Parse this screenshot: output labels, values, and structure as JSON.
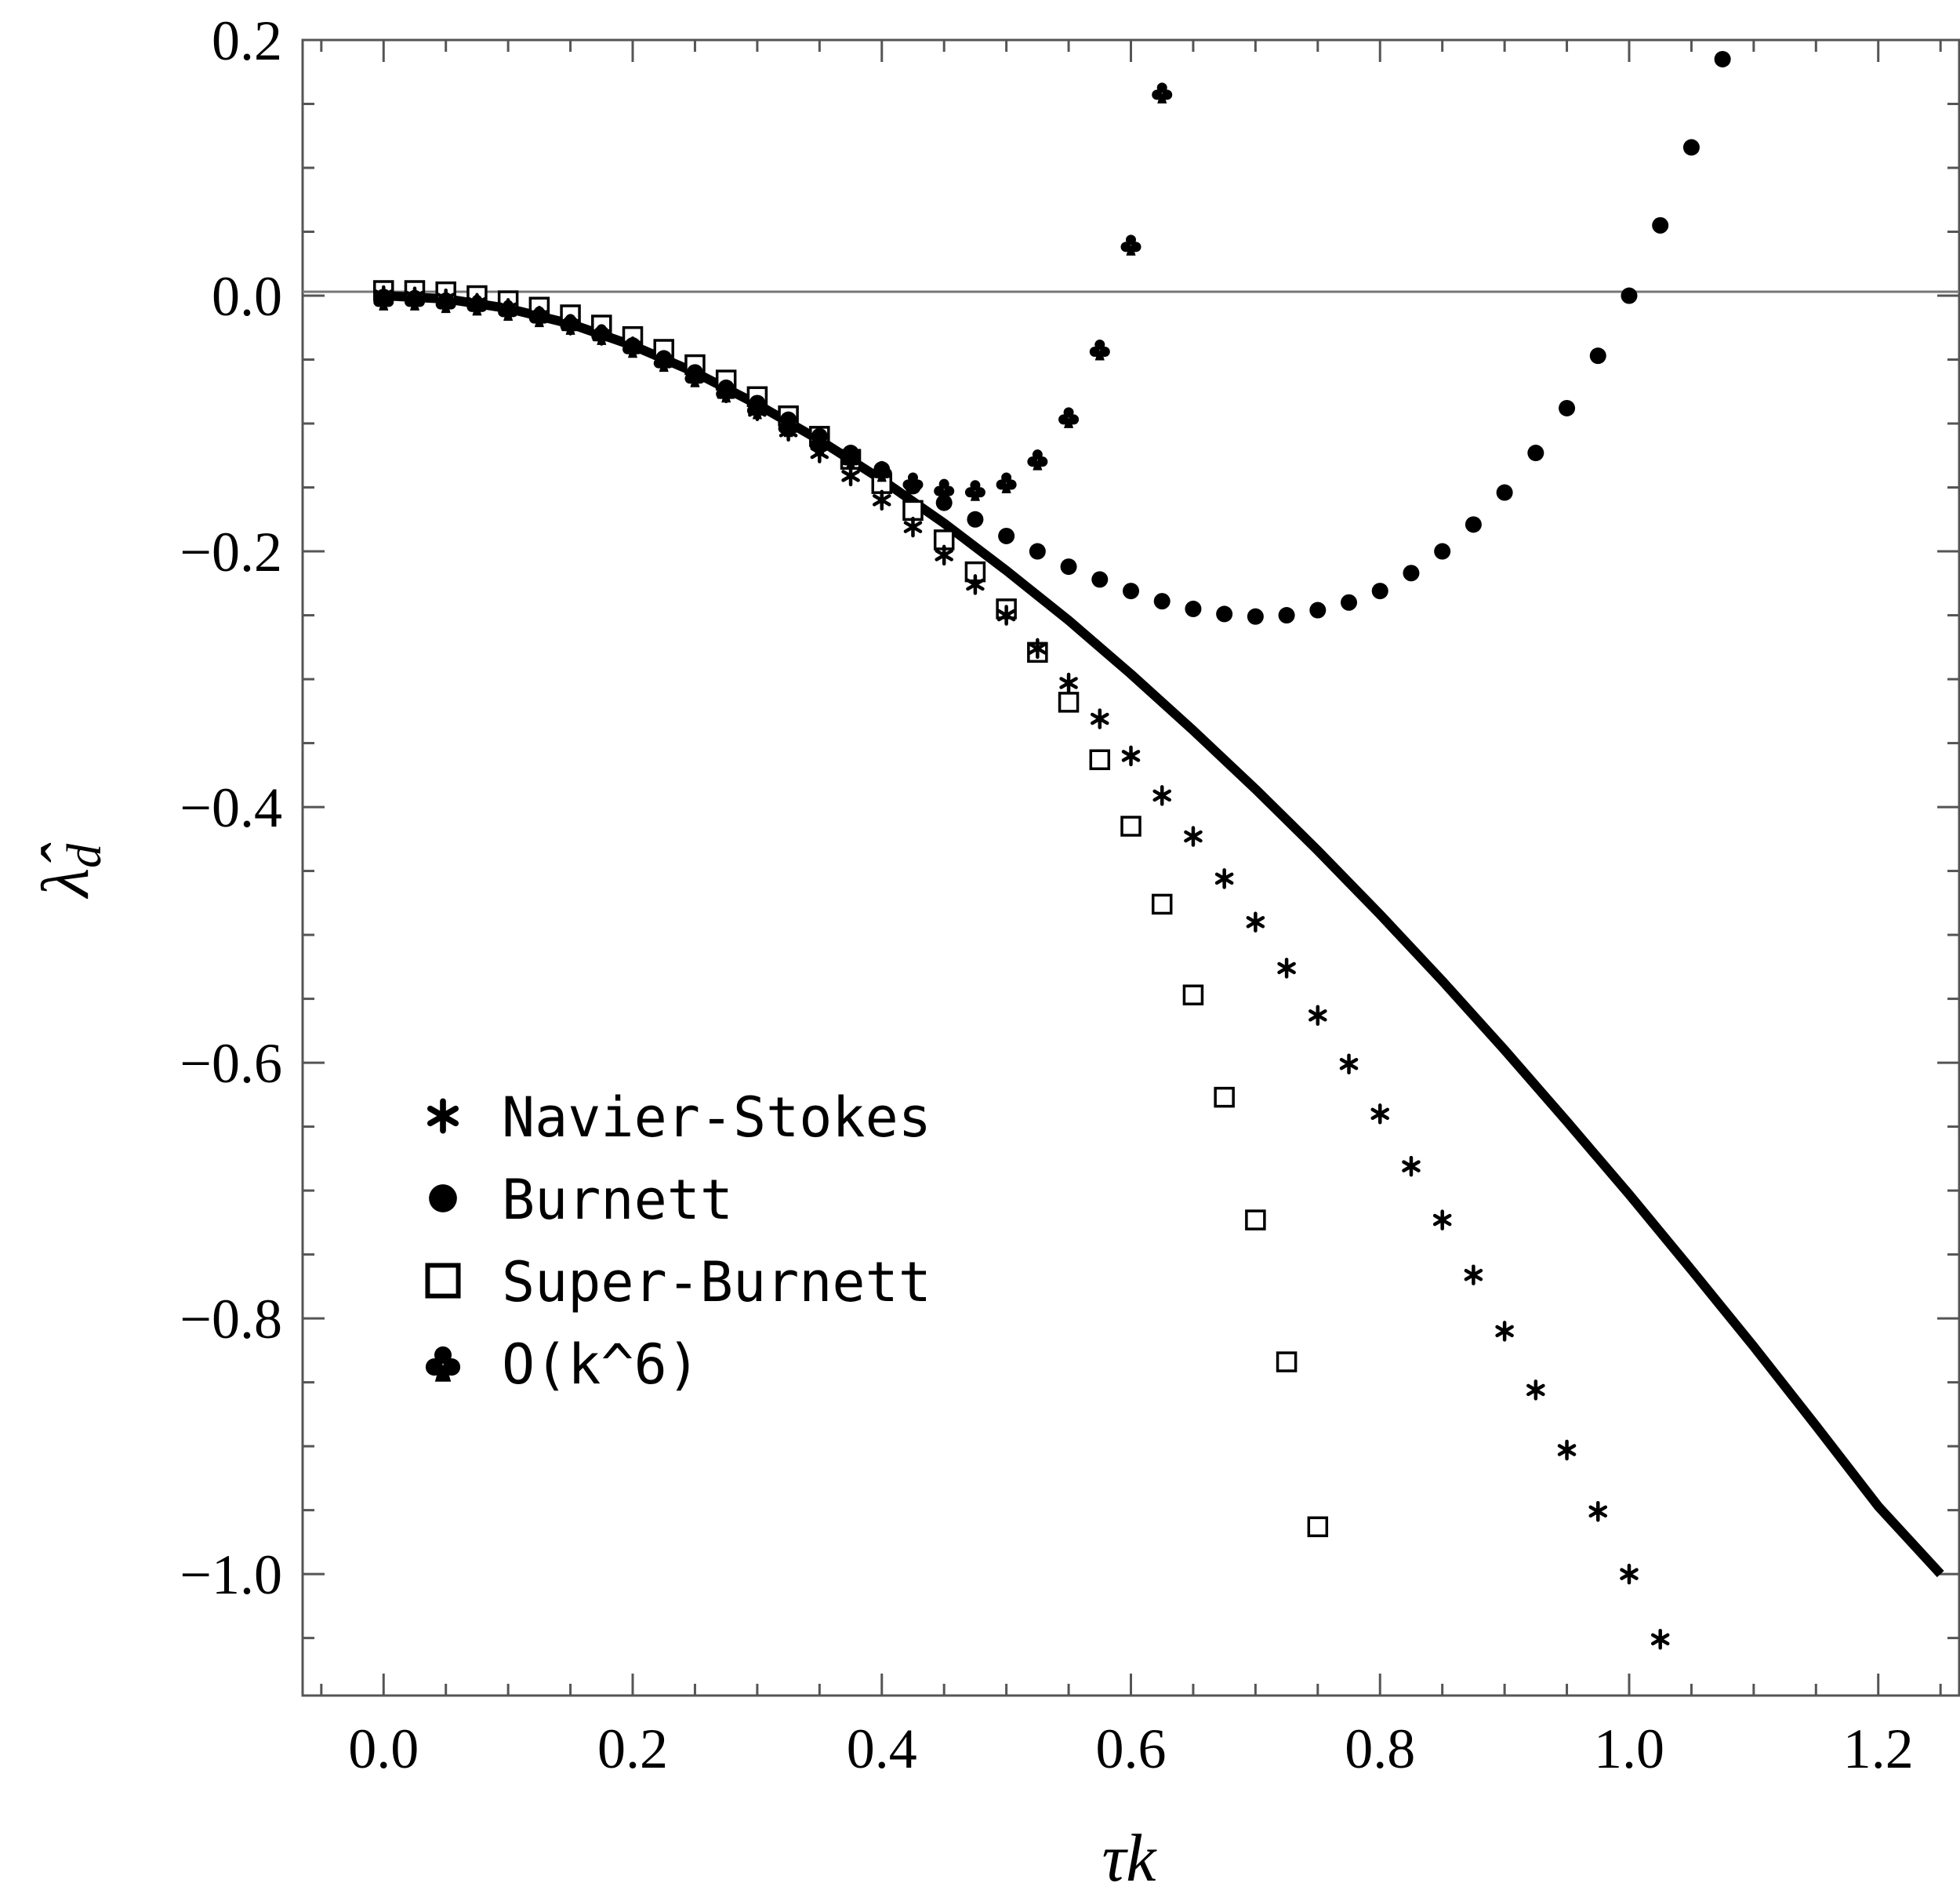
{
  "chart_data": {
    "type": "scatter",
    "xlabel": "τk",
    "ylabel": "λ̂",
    "ylabel_subscript": "d",
    "xlim": [
      -0.065,
      1.265
    ],
    "ylim": [
      -1.095,
      0.2
    ],
    "x_ticks": [
      0.0,
      0.2,
      0.4,
      0.6,
      0.8,
      1.0,
      1.2
    ],
    "x_tick_labels": [
      "0.0",
      "0.2",
      "0.4",
      "0.6",
      "0.8",
      "1.0",
      "1.2"
    ],
    "y_ticks": [
      0.2,
      0.0,
      -0.2,
      -0.4,
      -0.6,
      -0.8,
      -1.0
    ],
    "y_tick_labels": [
      "0.2",
      "0.0",
      "−0.2",
      "−0.4",
      "−0.6",
      "−0.8",
      "−1.0"
    ],
    "grid": false,
    "legend_position": "lower-left",
    "legend": [
      "Navier-Stokes",
      "Burnett",
      "Super-Burnett",
      "O(k^6)"
    ],
    "series": [
      {
        "name": "Navier-Stokes",
        "marker": "asterisk",
        "x": [
          0.0,
          0.025,
          0.05,
          0.075,
          0.1,
          0.125,
          0.15,
          0.175,
          0.2,
          0.225,
          0.25,
          0.275,
          0.3,
          0.325,
          0.35,
          0.375,
          0.4,
          0.425,
          0.45,
          0.475,
          0.5,
          0.525,
          0.55,
          0.575,
          0.6,
          0.625,
          0.65,
          0.675,
          0.7,
          0.725,
          0.75,
          0.775,
          0.8,
          0.825,
          0.85,
          0.875,
          0.9,
          0.925,
          0.95,
          0.975,
          1.0,
          1.025
        ],
        "y": [
          0.0,
          -0.001,
          -0.0025,
          -0.006,
          -0.01,
          -0.016,
          -0.023,
          -0.031,
          -0.04,
          -0.051,
          -0.063,
          -0.076,
          -0.09,
          -0.106,
          -0.123,
          -0.141,
          -0.16,
          -0.181,
          -0.203,
          -0.226,
          -0.25,
          -0.276,
          -0.303,
          -0.331,
          -0.36,
          -0.391,
          -0.423,
          -0.456,
          -0.49,
          -0.526,
          -0.563,
          -0.601,
          -0.64,
          -0.681,
          -0.723,
          -0.766,
          -0.81,
          -0.856,
          -0.903,
          -0.951,
          -1.0,
          -1.051
        ]
      },
      {
        "name": "Burnett",
        "marker": "disk",
        "x": [
          0.0,
          0.025,
          0.05,
          0.075,
          0.1,
          0.125,
          0.15,
          0.175,
          0.2,
          0.225,
          0.25,
          0.275,
          0.3,
          0.325,
          0.35,
          0.375,
          0.4,
          0.425,
          0.45,
          0.475,
          0.5,
          0.525,
          0.55,
          0.575,
          0.6,
          0.625,
          0.65,
          0.675,
          0.7,
          0.725,
          0.75,
          0.775,
          0.8,
          0.825,
          0.85,
          0.875,
          0.9,
          0.925,
          0.95,
          0.975,
          1.0,
          1.025,
          1.05,
          1.075
        ],
        "y": [
          -0.001,
          -0.002,
          -0.004,
          -0.007,
          -0.011,
          -0.016,
          -0.022,
          -0.03,
          -0.039,
          -0.049,
          -0.06,
          -0.072,
          -0.084,
          -0.097,
          -0.11,
          -0.123,
          -0.136,
          -0.149,
          -0.162,
          -0.175,
          -0.188,
          -0.2,
          -0.212,
          -0.222,
          -0.231,
          -0.239,
          -0.245,
          -0.249,
          -0.251,
          -0.25,
          -0.246,
          -0.24,
          -0.231,
          -0.217,
          -0.2,
          -0.179,
          -0.154,
          -0.123,
          -0.088,
          -0.047,
          0.0,
          0.055,
          0.116,
          0.185
        ]
      },
      {
        "name": "Super-Burnett",
        "marker": "open-square",
        "x": [
          0.0,
          0.025,
          0.05,
          0.075,
          0.1,
          0.125,
          0.15,
          0.175,
          0.2,
          0.225,
          0.25,
          0.275,
          0.3,
          0.325,
          0.35,
          0.375,
          0.4,
          0.425,
          0.45,
          0.475,
          0.5,
          0.525,
          0.55,
          0.575,
          0.6,
          0.625,
          0.65,
          0.675,
          0.7,
          0.725,
          0.75
        ],
        "y": [
          0.004,
          0.004,
          0.003,
          0.0,
          -0.004,
          -0.009,
          -0.015,
          -0.023,
          -0.032,
          -0.042,
          -0.054,
          -0.066,
          -0.079,
          -0.094,
          -0.11,
          -0.128,
          -0.147,
          -0.168,
          -0.191,
          -0.216,
          -0.245,
          -0.279,
          -0.318,
          -0.363,
          -0.415,
          -0.476,
          -0.547,
          -0.627,
          -0.723,
          -0.834,
          -0.963
        ]
      },
      {
        "name": "O(k^6)",
        "marker": "club",
        "x": [
          0.0,
          0.025,
          0.05,
          0.075,
          0.1,
          0.125,
          0.15,
          0.175,
          0.2,
          0.225,
          0.25,
          0.275,
          0.3,
          0.325,
          0.35,
          0.375,
          0.4,
          0.425,
          0.45,
          0.475,
          0.5,
          0.525,
          0.55,
          0.575,
          0.6,
          0.625
        ],
        "y": [
          -0.003,
          -0.003,
          -0.005,
          -0.007,
          -0.011,
          -0.016,
          -0.022,
          -0.03,
          -0.04,
          -0.051,
          -0.063,
          -0.075,
          -0.088,
          -0.102,
          -0.115,
          -0.127,
          -0.137,
          -0.146,
          -0.151,
          -0.152,
          -0.146,
          -0.128,
          -0.095,
          -0.042,
          0.04,
          0.159
        ]
      },
      {
        "marker": "thick-line",
        "x": [
          0.0,
          0.05,
          0.1,
          0.15,
          0.2,
          0.25,
          0.3,
          0.35,
          0.4,
          0.45,
          0.5,
          0.55,
          0.6,
          0.65,
          0.7,
          0.75,
          0.8,
          0.85,
          0.9,
          0.95,
          1.0,
          1.05,
          1.1,
          1.15,
          1.2,
          1.25
        ],
        "y": [
          0.0,
          -0.0025,
          -0.01,
          -0.022,
          -0.039,
          -0.06,
          -0.085,
          -0.113,
          -0.144,
          -0.178,
          -0.215,
          -0.254,
          -0.296,
          -0.34,
          -0.386,
          -0.434,
          -0.484,
          -0.536,
          -0.59,
          -0.646,
          -0.703,
          -0.762,
          -0.822,
          -0.884,
          -0.947,
          -1.0
        ]
      }
    ]
  }
}
